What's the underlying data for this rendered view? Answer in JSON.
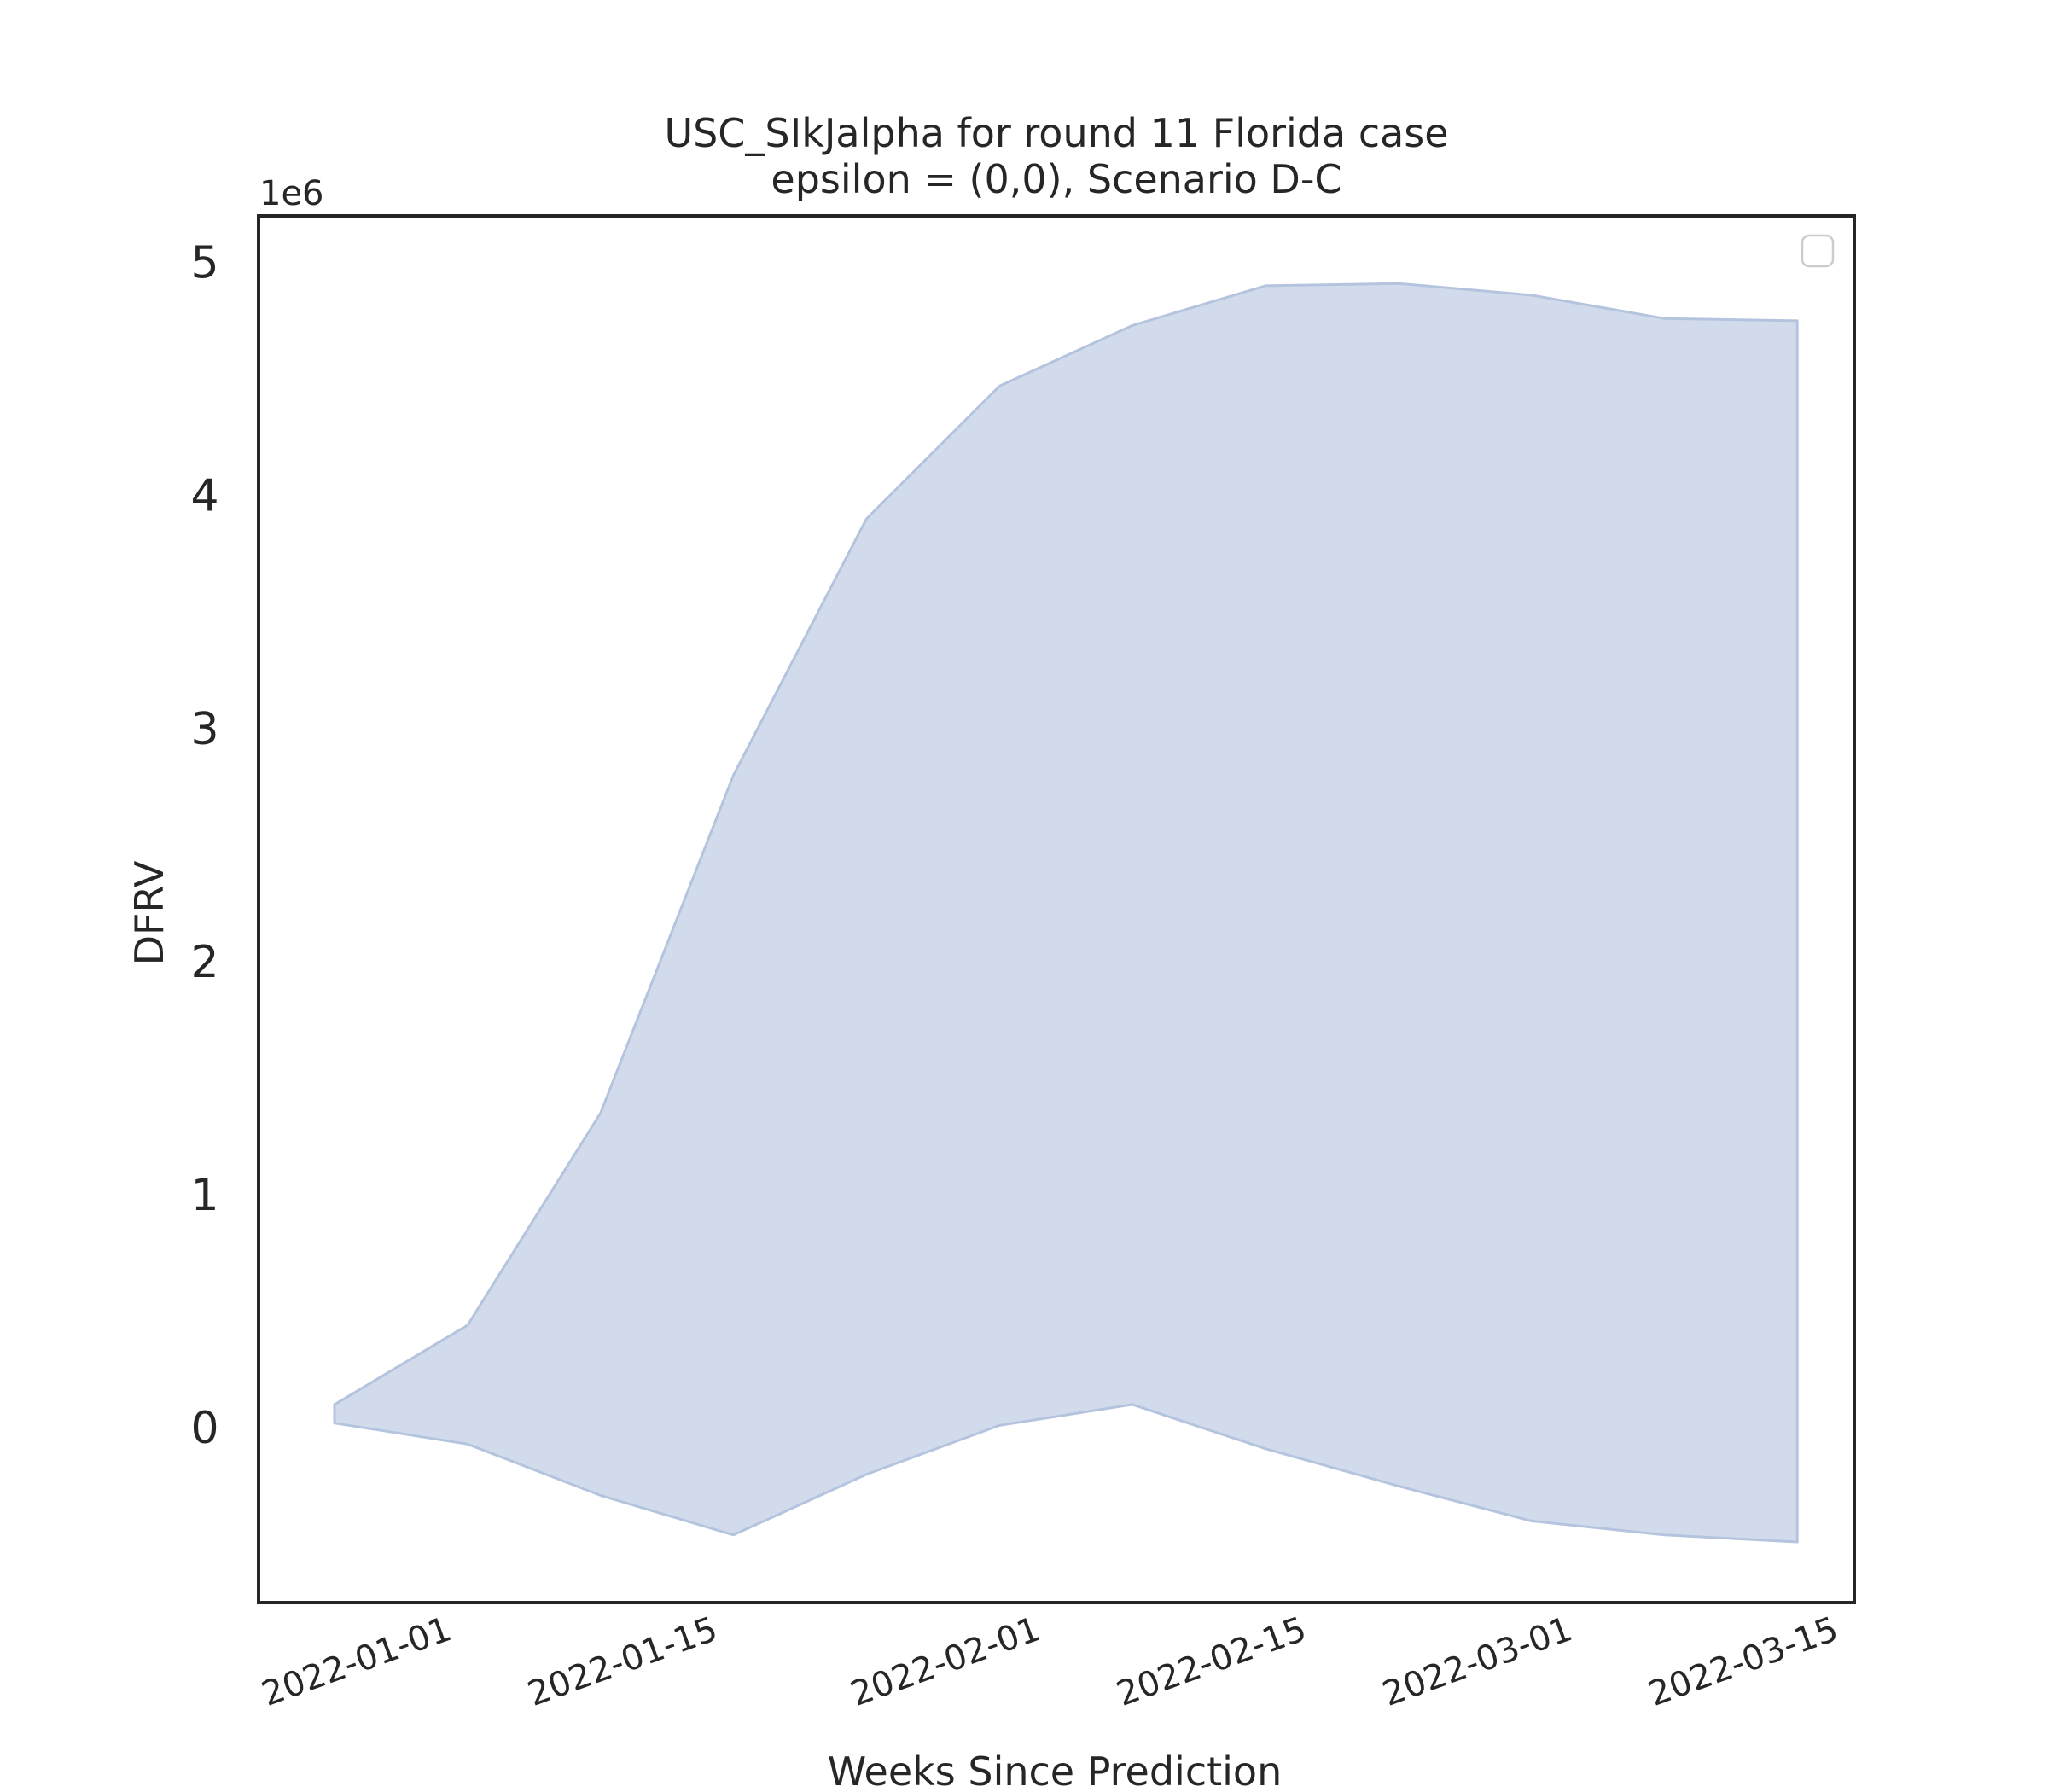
{
  "chart_data": {
    "type": "area",
    "title": "USC_SIkJalpha for round 11 Florida case",
    "subtitle": "epsilon = (0,0), Scenario D-C",
    "xlabel": "Weeks Since Prediction",
    "ylabel": "DFRV",
    "y_offset_label": "1e6",
    "x_tick_labels": [
      "2022-01-01",
      "2022-01-15",
      "2022-02-01",
      "2022-02-15",
      "2022-03-01",
      "2022-03-15"
    ],
    "y_tick_values": [
      0,
      1,
      2,
      3,
      4,
      5
    ],
    "y_tick_labels": [
      "0",
      "1",
      "2",
      "3",
      "4",
      "5"
    ],
    "y_scale": 1000000,
    "xlim": [
      "2021-12-22",
      "2022-03-16"
    ],
    "ylim": [
      -0.75,
      5.2
    ],
    "grid": false,
    "legend": {
      "placement": "top-right",
      "entries": []
    },
    "fill_color": "#d1dbeb",
    "edge_color": "#b5c4de",
    "x": [
      "2021-12-26",
      "2022-01-02",
      "2022-01-09",
      "2022-01-16",
      "2022-01-23",
      "2022-01-30",
      "2022-02-06",
      "2022-02-13",
      "2022-02-20",
      "2022-02-27",
      "2022-03-06",
      "2022-03-13"
    ],
    "series": [
      {
        "role": "upper",
        "values": [
          0.1,
          0.44,
          1.35,
          2.8,
          3.9,
          4.47,
          4.73,
          4.9,
          4.91,
          4.86,
          4.76,
          4.75
        ]
      },
      {
        "role": "lower",
        "values": [
          0.02,
          -0.07,
          -0.29,
          -0.46,
          -0.2,
          0.01,
          0.1,
          -0.09,
          -0.25,
          -0.4,
          -0.46,
          -0.49
        ]
      }
    ]
  }
}
